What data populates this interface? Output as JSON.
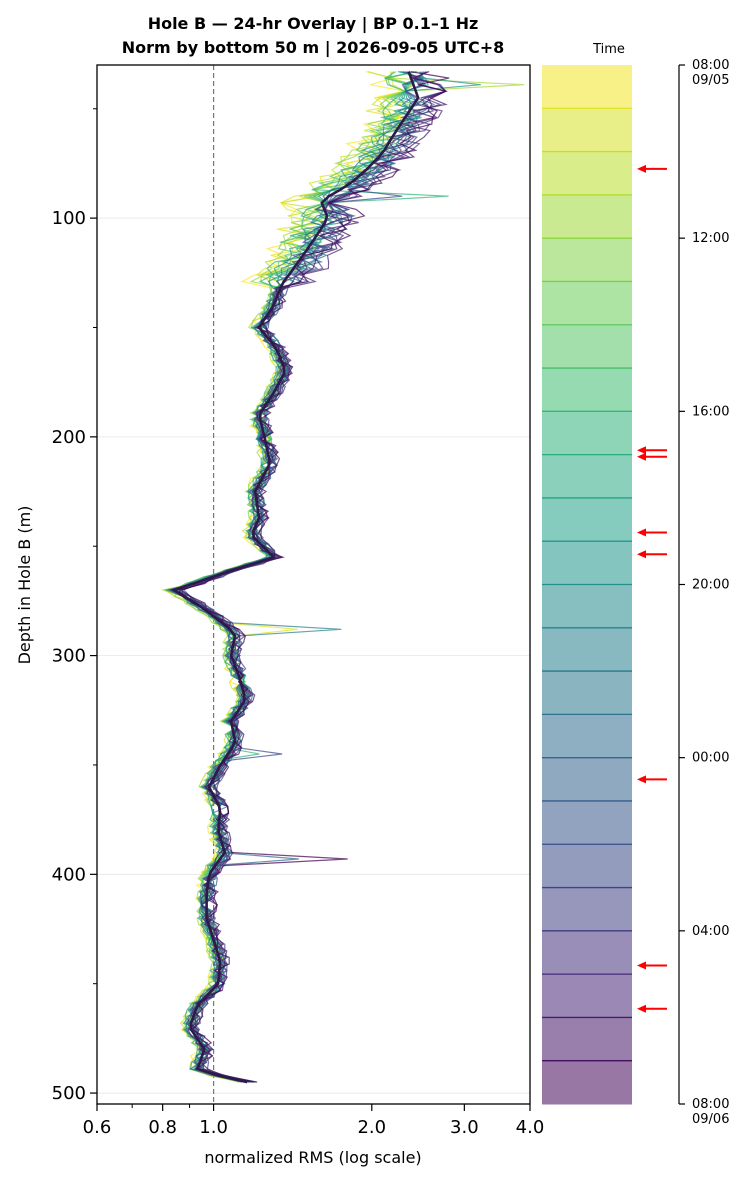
{
  "chart_data": {
    "type": "line",
    "title": "Hole B — 24-hr Overlay  |  BP 0.1–1 Hz",
    "subtitle": "Norm by bottom 50 m  |  2026-09-05 UTC+8",
    "xlabel": "normalized RMS  (log scale)",
    "ylabel": "Depth in Hole B (m)",
    "x_scale": "log",
    "xlim": [
      0.6,
      4.0
    ],
    "ylim": [
      505,
      30
    ],
    "x_ticks": [
      0.6,
      0.8,
      1.0,
      2.0,
      3.0,
      4.0
    ],
    "x_tick_labels": [
      "0.6",
      "0.8",
      "1.0",
      "2.0",
      "3.0",
      "4.0"
    ],
    "y_ticks": [
      100,
      200,
      300,
      400,
      500
    ],
    "y_tick_labels": [
      "100",
      "200",
      "300",
      "400",
      "500"
    ],
    "reference_line": {
      "x": 1.0,
      "style": "dashed",
      "color": "#777777"
    },
    "grid": true,
    "profile_depths": [
      33,
      45,
      55,
      62,
      70,
      78,
      85,
      92,
      100,
      110,
      120,
      130,
      140,
      150,
      160,
      170,
      180,
      190,
      200,
      212,
      225,
      237,
      245,
      255,
      262,
      270,
      278,
      290,
      300,
      310,
      320,
      330,
      340,
      350,
      360,
      370,
      380,
      390,
      400,
      410,
      420,
      430,
      440,
      450,
      460,
      470,
      480,
      490,
      497
    ],
    "profile_values": [
      2.35,
      2.45,
      2.3,
      2.2,
      2.1,
      1.95,
      1.8,
      1.6,
      1.65,
      1.55,
      1.45,
      1.35,
      1.3,
      1.22,
      1.32,
      1.37,
      1.3,
      1.22,
      1.25,
      1.28,
      1.2,
      1.22,
      1.18,
      1.3,
      1.05,
      0.84,
      0.95,
      1.1,
      1.08,
      1.12,
      1.15,
      1.08,
      1.1,
      1.03,
      0.98,
      1.03,
      1.02,
      1.05,
      0.98,
      0.97,
      0.97,
      1.0,
      1.03,
      1.02,
      0.93,
      0.9,
      0.96,
      0.93,
      1.25
    ],
    "anomalies": [
      {
        "depth": 38,
        "value": 3.9
      },
      {
        "depth": 90,
        "value": 2.8
      },
      {
        "depth": 288,
        "value": 1.75
      },
      {
        "depth": 345,
        "value": 1.35
      },
      {
        "depth": 394,
        "value": 1.8
      }
    ],
    "n_traces": 24,
    "colorbar": {
      "label": "Time",
      "colormap": "viridis",
      "range_hours": [
        0,
        24
      ],
      "tick_hours": [
        0,
        4,
        8,
        12,
        16,
        20,
        24
      ],
      "tick_labels": [
        "08:00\n09/05",
        "12:00",
        "16:00",
        "20:00",
        "00:00",
        "04:00",
        "08:00\n09/06"
      ],
      "marker_hours": [
        2.4,
        8.9,
        9.05,
        10.8,
        11.3,
        16.5,
        20.8,
        21.8
      ],
      "marker_color": "#ff0000"
    }
  }
}
